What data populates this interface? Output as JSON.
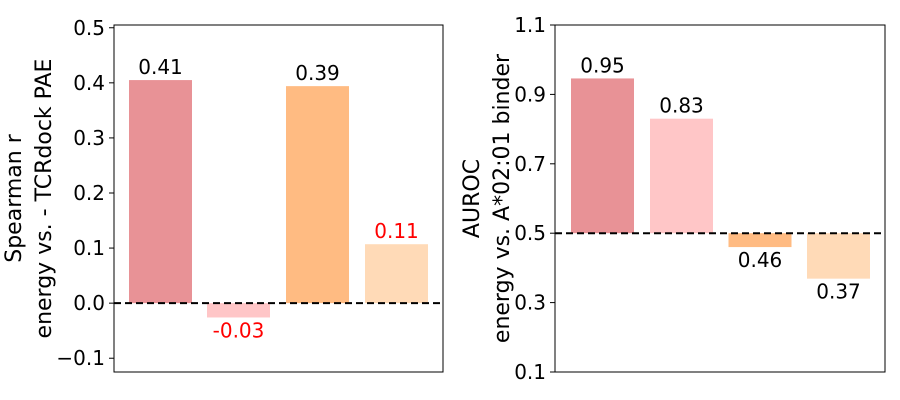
{
  "chart_data": [
    {
      "type": "bar",
      "categories": [
        "bar-1",
        "bar-2",
        "bar-3",
        "bar-4"
      ],
      "values": [
        0.405,
        -0.026,
        0.394,
        0.107
      ],
      "value_labels": [
        "0.41",
        "-0.03",
        "0.39",
        "0.11"
      ],
      "label_colors": [
        "#000000",
        "#ff0000",
        "#000000",
        "#ff0000"
      ],
      "colors": [
        "#e89296",
        "#ffc6c7",
        "#ffbb82",
        "#ffdab7"
      ],
      "ylabel_lines": [
        "Spearman r",
        "energy vs. - TCRdock PAE"
      ],
      "ylim": [
        -0.125,
        0.505
      ],
      "yticks": [
        -0.1,
        0.0,
        0.1,
        0.2,
        0.3,
        0.4,
        0.5
      ],
      "ytick_labels": [
        "−0.1",
        "0.0",
        "0.1",
        "0.2",
        "0.3",
        "0.4",
        "0.5"
      ],
      "baseline": 0.0
    },
    {
      "type": "bar",
      "categories": [
        "bar-1",
        "bar-2",
        "bar-3",
        "bar-4"
      ],
      "values": [
        0.946,
        0.83,
        0.46,
        0.369
      ],
      "value_labels": [
        "0.95",
        "0.83",
        "0.46",
        "0.37"
      ],
      "label_colors": [
        "#000000",
        "#000000",
        "#000000",
        "#000000"
      ],
      "colors": [
        "#e89296",
        "#ffc6c7",
        "#ffbb82",
        "#ffdab7"
      ],
      "ylabel_lines": [
        "AUROC",
        "energy vs. A*02:01 binder"
      ],
      "ylim": [
        0.1,
        1.1
      ],
      "yticks": [
        0.1,
        0.3,
        0.5,
        0.7,
        0.9,
        1.1
      ],
      "ytick_labels": [
        "0.1",
        "0.3",
        "0.5",
        "0.7",
        "0.9",
        "1.1"
      ],
      "baseline": 0.5
    }
  ]
}
